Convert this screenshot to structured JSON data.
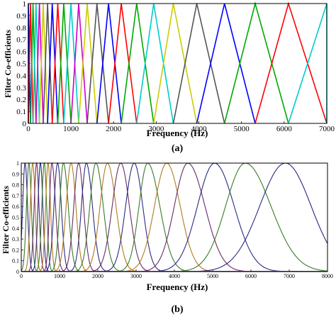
{
  "chart_data": [
    {
      "type": "line",
      "panel_label": "(a)",
      "xlabel": "Frequency (Hz)",
      "ylabel": "Filter Co-efficients",
      "xlim": [
        0,
        7000
      ],
      "ylim": [
        0,
        1
      ],
      "xticks": [
        0,
        1000,
        2000,
        3000,
        4000,
        5000,
        6000,
        7000
      ],
      "yticks": [
        0,
        0.1,
        0.2,
        0.3,
        0.4,
        0.5,
        0.6,
        0.7,
        0.8,
        0.9,
        1
      ],
      "xtick_labels": [
        "0",
        "1000",
        "2000",
        "3000",
        "4000",
        "5000",
        "6000",
        "7000"
      ],
      "ytick_labels": [
        "0",
        "0.1",
        "0.2",
        "0.3",
        "0.4",
        "0.5",
        "0.6",
        "0.7",
        "0.8",
        "0.9",
        "1"
      ],
      "shape": "triangular",
      "center_frequencies_hz": [
        0,
        50,
        110,
        180,
        260,
        350,
        450,
        560,
        690,
        830,
        1000,
        1180,
        1380,
        1610,
        1880,
        2180,
        2540,
        2940,
        3400,
        3950,
        4600,
        5320,
        6100,
        7000
      ],
      "colors": [
        "#0000ff",
        "#ff0000",
        "#00aa00",
        "#00cccc",
        "#cc00cc",
        "#cccc00",
        "#555555",
        "#0000ff",
        "#ff0000",
        "#00aa00",
        "#00cccc",
        "#cc00cc",
        "#cccc00",
        "#555555",
        "#0000ff",
        "#ff0000",
        "#00aa00",
        "#00cccc",
        "#cccc00",
        "#555555",
        "#0000ff",
        "#00aa00",
        "#ff0000",
        "#00cccc"
      ]
    },
    {
      "type": "line",
      "panel_label": "(b)",
      "xlabel": "Frequency (Hz)",
      "ylabel": "Filter Co-efficients",
      "xlim": [
        0,
        8000
      ],
      "ylim": [
        0,
        1
      ],
      "xticks": [
        0,
        1000,
        2000,
        3000,
        4000,
        5000,
        6000,
        7000,
        8000
      ],
      "yticks": [
        0,
        0.1,
        0.2,
        0.3,
        0.4,
        0.5,
        0.6,
        0.7,
        0.8,
        0.9,
        1
      ],
      "xtick_labels": [
        "0",
        "1000",
        "2000",
        "3000",
        "4000",
        "5000",
        "6000",
        "7000",
        "8000"
      ],
      "ytick_labels": [
        "0",
        "0.1",
        "0.2",
        "0.3",
        "0.4",
        "0.5",
        "0.6",
        "0.7",
        "0.8",
        "0.9",
        "1"
      ],
      "shape": "bell",
      "center_frequencies_hz": [
        100,
        200,
        300,
        400,
        500,
        600,
        700,
        800,
        950,
        1100,
        1300,
        1500,
        1700,
        1950,
        2250,
        2600,
        2950,
        3300,
        3800,
        4350,
        5050,
        5850,
        6900
      ],
      "colors": [
        "#2a2a80",
        "#3a7a2a",
        "#b07a20",
        "#6a2a6a",
        "#2a2a80",
        "#3a7a2a",
        "#b07a20",
        "#6a2a6a",
        "#2a2a80",
        "#3a7a2a",
        "#b07a20",
        "#6a2a6a",
        "#2a2a80",
        "#3a7a2a",
        "#b07a20",
        "#6a2a6a",
        "#2a2a80",
        "#3a7a2a",
        "#b07a20",
        "#6a2a6a",
        "#2a2a80",
        "#3a7a2a",
        "#2a2a80"
      ]
    }
  ]
}
